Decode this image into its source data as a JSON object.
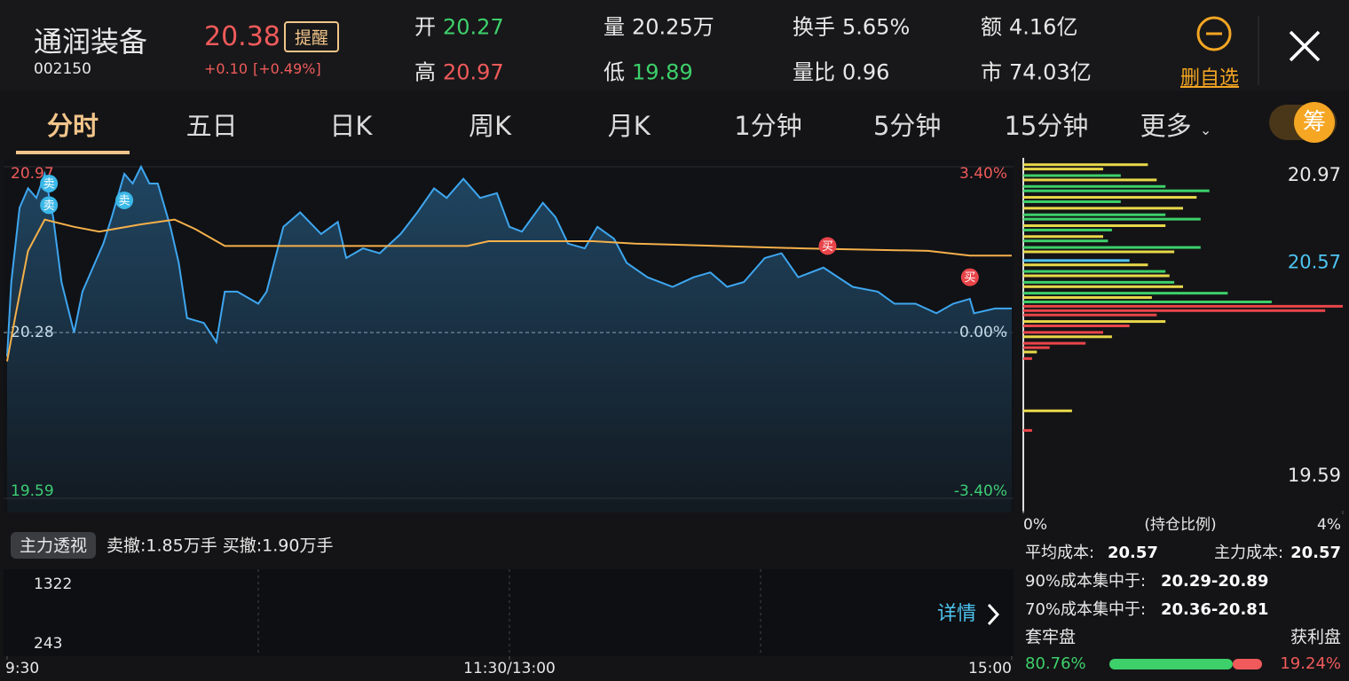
{
  "header": {
    "name": "通润装备",
    "code": "002150",
    "price": "20.38",
    "alert": "提醒",
    "change": "+0.10",
    "change_pct": "[+0.49%]",
    "stats": [
      {
        "label": "开",
        "value": "20.27",
        "color": "#3dd06a"
      },
      {
        "label": "量",
        "value": "20.25万",
        "color": "#e8e8e8"
      },
      {
        "label": "换手",
        "value": "5.65%",
        "color": "#e8e8e8"
      },
      {
        "label": "额",
        "value": "4.16亿",
        "color": "#e8e8e8"
      },
      {
        "label": "高",
        "value": "20.97",
        "color": "#f05a5a"
      },
      {
        "label": "低",
        "value": "19.89",
        "color": "#3dd06a"
      },
      {
        "label": "量比",
        "value": "0.96",
        "color": "#e8e8e8"
      },
      {
        "label": "市",
        "value": "74.03亿",
        "color": "#e8e8e8"
      }
    ],
    "remove_watchlist": "删自选"
  },
  "tabs": {
    "items": [
      "分时",
      "五日",
      "日K",
      "周K",
      "月K",
      "1分钟",
      "5分钟",
      "15分钟"
    ],
    "more": "更多",
    "chip_toggle": "筹"
  },
  "chart_data": [
    {
      "type": "line",
      "ylim": [
        19.59,
        20.97
      ],
      "yticks": [
        {
          "value": 20.97,
          "label": "20.97",
          "color": "#f05a5a"
        },
        {
          "value": 20.28,
          "label": "20.28",
          "color": "#e8e8e8"
        },
        {
          "value": 19.59,
          "label": "19.59",
          "color": "#3dd06a"
        }
      ],
      "y2lim": [
        -3.4,
        3.4
      ],
      "y2ticks": [
        {
          "value": 3.4,
          "label": "3.40%",
          "color": "#f05a5a"
        },
        {
          "value": 0,
          "label": "0.00%",
          "color": "#e8e8e8"
        },
        {
          "value": -3.4,
          "label": "-3.40%",
          "color": "#3dd06a"
        }
      ],
      "xlim": [
        0,
        240
      ],
      "xticks": [
        {
          "value": 0,
          "label": "9:30"
        },
        {
          "value": 120,
          "label": "11:30/13:00"
        },
        {
          "value": 240,
          "label": "15:00"
        }
      ],
      "series": [
        {
          "color": "#3ea6ef",
          "fill": true,
          "x": [
            0,
            1,
            3,
            5,
            7,
            9,
            11,
            13,
            16,
            18,
            21,
            23,
            25,
            28,
            30,
            32,
            34,
            36,
            39,
            41,
            43,
            47,
            50,
            52,
            55,
            60,
            62,
            66,
            70,
            75,
            79,
            81,
            85,
            89,
            94,
            98,
            102,
            105,
            109,
            113,
            117,
            120,
            123,
            128,
            131,
            134,
            138,
            141,
            145,
            148,
            153,
            159,
            164,
            168,
            172,
            176,
            181,
            185,
            189,
            195,
            202,
            208,
            212,
            217,
            222,
            226,
            230,
            231,
            236,
            240
          ],
          "values": [
            20.18,
            20.49,
            20.8,
            20.88,
            20.84,
            20.94,
            20.76,
            20.49,
            20.28,
            20.45,
            20.57,
            20.65,
            20.76,
            20.94,
            20.9,
            20.97,
            20.9,
            20.9,
            20.72,
            20.57,
            20.34,
            20.32,
            20.24,
            20.45,
            20.45,
            20.4,
            20.45,
            20.72,
            20.78,
            20.69,
            20.74,
            20.59,
            20.63,
            20.61,
            20.69,
            20.78,
            20.88,
            20.84,
            20.92,
            20.84,
            20.86,
            20.72,
            20.7,
            20.82,
            20.76,
            20.65,
            20.63,
            20.72,
            20.67,
            20.57,
            20.51,
            20.47,
            20.51,
            20.53,
            20.47,
            20.49,
            20.59,
            20.61,
            20.51,
            20.55,
            20.47,
            20.45,
            20.4,
            20.4,
            20.36,
            20.4,
            20.42,
            20.36,
            20.38,
            20.38
          ]
        },
        {
          "color": "#f5b04a",
          "fill": false,
          "x": [
            0,
            2,
            5,
            9,
            16,
            22,
            32,
            40,
            45,
            52,
            110,
            115,
            140,
            150,
            190,
            220,
            230,
            240
          ],
          "values": [
            20.16,
            20.35,
            20.62,
            20.75,
            20.72,
            20.7,
            20.73,
            20.75,
            20.71,
            20.64,
            20.64,
            20.66,
            20.66,
            20.65,
            20.63,
            20.62,
            20.6,
            20.6
          ]
        }
      ],
      "markers": [
        {
          "label": "卖",
          "x": 10,
          "y": 20.9,
          "color": "#3ab8e8"
        },
        {
          "label": "卖",
          "x": 10,
          "y": 20.81,
          "color": "#3ab8e8"
        },
        {
          "label": "卖",
          "x": 28,
          "y": 20.83,
          "color": "#3ab8e8"
        },
        {
          "label": "买",
          "x": 196,
          "y": 20.64,
          "color": "#e8454a"
        },
        {
          "label": "买",
          "x": 230,
          "y": 20.51,
          "color": "#e8454a"
        }
      ]
    },
    {
      "type": "volume",
      "title": "主力透视",
      "summary": "卖撤:1.85万手 买撤:1.90万手",
      "ylim": [
        0,
        1322
      ],
      "yticks": [
        1322,
        243
      ],
      "detail": "详情"
    },
    {
      "type": "chip",
      "ylim": [
        19.59,
        20.97
      ],
      "yticks": [
        20.97,
        20.57,
        19.59
      ],
      "xlim": [
        0,
        4
      ],
      "xticks": [
        {
          "value": 0,
          "label": "0%"
        },
        {
          "value": 4,
          "label": "4%"
        }
      ],
      "xlabel": "(持仓比例)",
      "levels": [
        {
          "price": 21.02,
          "pct": 1.56,
          "color": "#e8d84a"
        },
        {
          "price": 21.0,
          "pct": 1.0,
          "color": "#e8d84a"
        },
        {
          "price": 20.97,
          "pct": 1.22,
          "color": "#3dd06a"
        },
        {
          "price": 20.95,
          "pct": 1.67,
          "color": "#e8d84a"
        },
        {
          "price": 20.92,
          "pct": 1.78,
          "color": "#3dd06a"
        },
        {
          "price": 20.9,
          "pct": 2.33,
          "color": "#3dd06a"
        },
        {
          "price": 20.87,
          "pct": 2.17,
          "color": "#e8d84a"
        },
        {
          "price": 20.85,
          "pct": 1.22,
          "color": "#3dd06a"
        },
        {
          "price": 20.82,
          "pct": 2.0,
          "color": "#e8d84a"
        },
        {
          "price": 20.79,
          "pct": 1.78,
          "color": "#3dd06a"
        },
        {
          "price": 20.77,
          "pct": 2.22,
          "color": "#3dd06a"
        },
        {
          "price": 20.74,
          "pct": 1.78,
          "color": "#e8d84a"
        },
        {
          "price": 20.72,
          "pct": 1.11,
          "color": "#3dd06a"
        },
        {
          "price": 20.69,
          "pct": 1.0,
          "color": "#e8d84a"
        },
        {
          "price": 20.67,
          "pct": 1.06,
          "color": "#3dd06a"
        },
        {
          "price": 20.64,
          "pct": 2.22,
          "color": "#3dd06a"
        },
        {
          "price": 20.62,
          "pct": 1.89,
          "color": "#e8d84a"
        },
        {
          "price": 20.58,
          "pct": 1.33,
          "color": "#4ec4f0"
        },
        {
          "price": 20.56,
          "pct": 1.56,
          "color": "#e8d84a"
        },
        {
          "price": 20.53,
          "pct": 1.78,
          "color": "#3dd06a"
        },
        {
          "price": 20.51,
          "pct": 1.83,
          "color": "#e8d84a"
        },
        {
          "price": 20.48,
          "pct": 1.89,
          "color": "#3dd06a"
        },
        {
          "price": 20.46,
          "pct": 2.0,
          "color": "#e8d84a"
        },
        {
          "price": 20.43,
          "pct": 2.56,
          "color": "#3dd06a"
        },
        {
          "price": 20.41,
          "pct": 1.61,
          "color": "#e8d84a"
        },
        {
          "price": 20.39,
          "pct": 3.11,
          "color": "#3dd06a"
        },
        {
          "price": 20.37,
          "pct": 4.0,
          "color": "#e8454a"
        },
        {
          "price": 20.35,
          "pct": 3.78,
          "color": "#e8454a"
        },
        {
          "price": 20.33,
          "pct": 1.67,
          "color": "#e8454a"
        },
        {
          "price": 20.3,
          "pct": 1.78,
          "color": "#e8d84a"
        },
        {
          "price": 20.28,
          "pct": 1.33,
          "color": "#e8454a"
        },
        {
          "price": 20.25,
          "pct": 1.0,
          "color": "#e8454a"
        },
        {
          "price": 20.23,
          "pct": 1.11,
          "color": "#e8d84a"
        },
        {
          "price": 20.2,
          "pct": 0.78,
          "color": "#e8454a"
        },
        {
          "price": 20.18,
          "pct": 0.33,
          "color": "#e8454a"
        },
        {
          "price": 20.16,
          "pct": 0.17,
          "color": "#e8d84a"
        },
        {
          "price": 20.13,
          "pct": 0.11,
          "color": "#e8454a"
        },
        {
          "price": 19.89,
          "pct": 0.61,
          "color": "#e8d84a"
        },
        {
          "price": 19.8,
          "pct": 0.11,
          "color": "#e8454a"
        }
      ],
      "avg_cost_label": "平均成本:",
      "avg_cost": 20.57,
      "main_cost_label": "主力成本:",
      "main_cost": 20.57,
      "c90_label": "90%成本集中于:",
      "c90": "20.29-20.89",
      "c70_label": "70%成本集中于:",
      "c70": "20.36-20.81",
      "trapped_label": "套牢盘",
      "profit_label": "获利盘",
      "trapped": {
        "value": 80.76,
        "label": "80.76%"
      },
      "profit": {
        "value": 19.24,
        "label": "19.24%"
      }
    }
  ]
}
